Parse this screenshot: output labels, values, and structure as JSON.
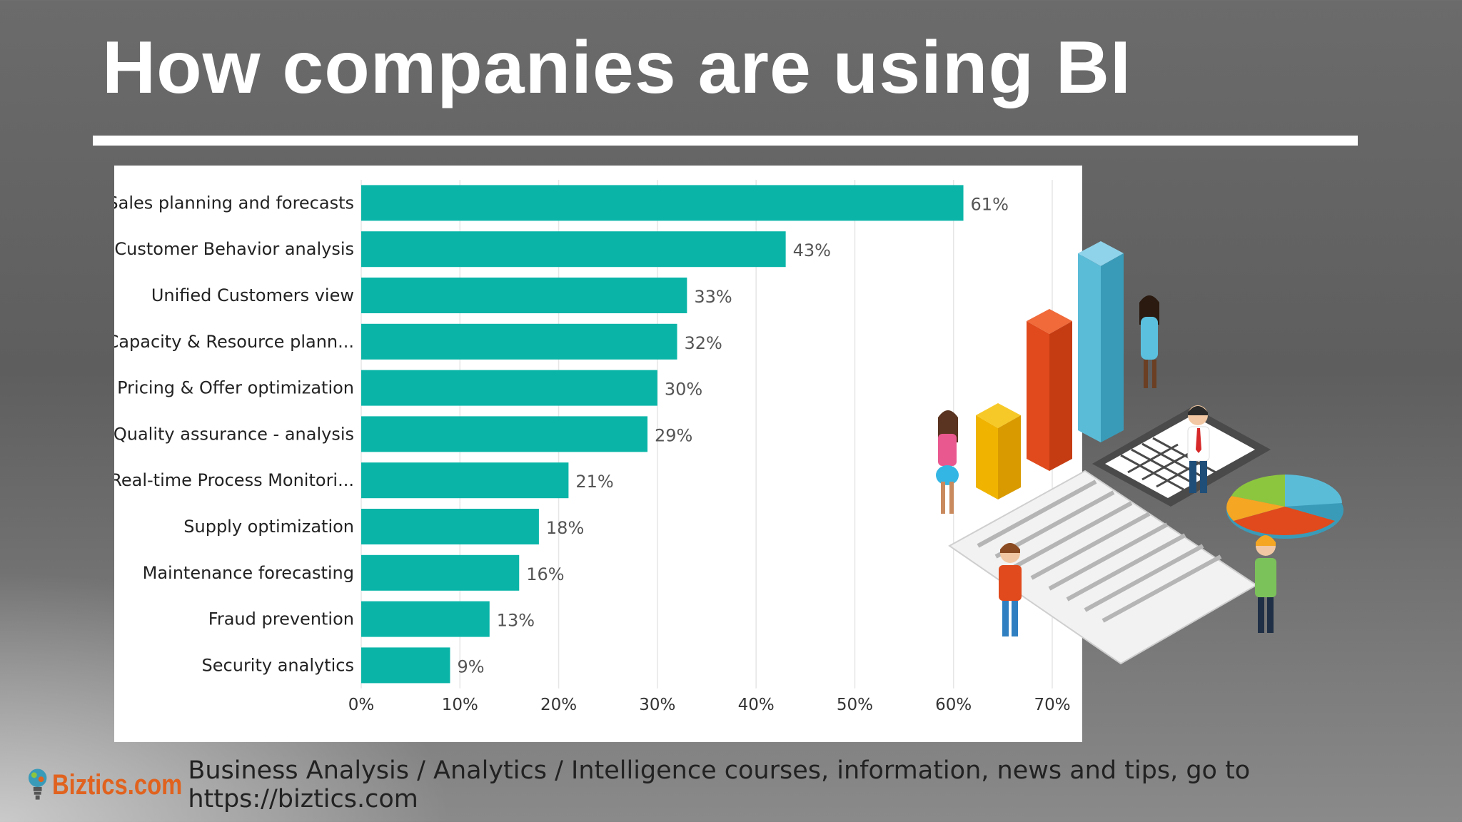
{
  "slide": {
    "title": "How companies are using BI",
    "watermark": "Biztics.com"
  },
  "footer": {
    "logo_text": "Biztics.com",
    "text": "Business Analysis / Analytics / Intelligence courses, information, news and tips, go to https://biztics.com"
  },
  "colors": {
    "bar": "#0ab5a8",
    "grid": "#e6e6e6",
    "accent_orange": "#e0621e"
  },
  "icons": [
    "lightbulb-logo-icon",
    "business-people-illustration"
  ],
  "chart_data": {
    "type": "bar",
    "orientation": "horizontal",
    "categories": [
      "Sales planning and forecasts",
      "Customer Behavior analysis",
      "Unified Customers view",
      "Capacity & Resource plann...",
      "Pricing & Offer optimization",
      "Quality assurance - analysis",
      "Real-time Process Monitori...",
      "Supply optimization",
      "Maintenance forecasting",
      "Fraud prevention",
      "Security analytics"
    ],
    "values": [
      61,
      43,
      33,
      32,
      30,
      29,
      21,
      18,
      16,
      13,
      9
    ],
    "value_labels": [
      "61%",
      "43%",
      "33%",
      "32%",
      "30%",
      "29%",
      "21%",
      "18%",
      "16%",
      "13%",
      "9%"
    ],
    "xlim": [
      0,
      70
    ],
    "xticks": [
      "0%",
      "10%",
      "20%",
      "30%",
      "40%",
      "50%",
      "60%",
      "70%"
    ],
    "grid": true,
    "legend": "none"
  }
}
